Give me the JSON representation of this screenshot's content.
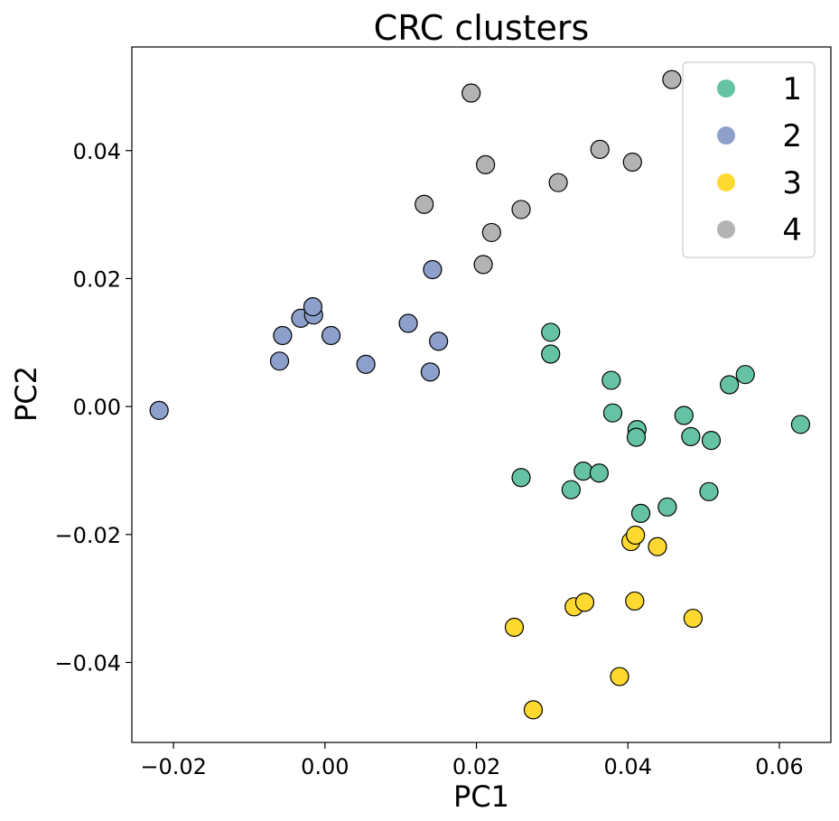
{
  "chart_data": {
    "type": "scatter",
    "title": "CRC clusters",
    "xlabel": "PC1",
    "ylabel": "PC2",
    "xlim": [
      -0.0255,
      0.0668
    ],
    "ylim": [
      -0.0525,
      0.0562
    ],
    "xticks": [
      -0.02,
      0.0,
      0.02,
      0.04,
      0.06
    ],
    "xtick_labels": [
      "−0.02",
      "0.00",
      "0.02",
      "0.04",
      "0.06"
    ],
    "yticks": [
      -0.04,
      -0.02,
      0.0,
      0.02,
      0.04
    ],
    "ytick_labels": [
      "−0.04",
      "−0.02",
      "0.00",
      "0.02",
      "0.04"
    ],
    "grid": false,
    "legend_position": "top-right",
    "series": [
      {
        "name": "1",
        "color": "#66c2a5",
        "points": [
          [
            0.0298,
            0.0116
          ],
          [
            0.0298,
            0.0082
          ],
          [
            0.0378,
            0.0041
          ],
          [
            0.038,
            -0.001
          ],
          [
            0.0412,
            -0.0036
          ],
          [
            0.0411,
            -0.0048
          ],
          [
            0.0474,
            -0.0014
          ],
          [
            0.0483,
            -0.0047
          ],
          [
            0.051,
            -0.0053
          ],
          [
            0.0534,
            0.0034
          ],
          [
            0.0555,
            0.005
          ],
          [
            0.0628,
            -0.0028
          ],
          [
            0.0259,
            -0.0111
          ],
          [
            0.0341,
            -0.0101
          ],
          [
            0.0362,
            -0.0104
          ],
          [
            0.0325,
            -0.013
          ],
          [
            0.0417,
            -0.0167
          ],
          [
            0.0452,
            -0.0157
          ],
          [
            0.0507,
            -0.0133
          ]
        ]
      },
      {
        "name": "2",
        "color": "#8da0cb",
        "points": [
          [
            -0.0219,
            -0.0006
          ],
          [
            -0.006,
            0.0071
          ],
          [
            -0.0056,
            0.0111
          ],
          [
            -0.0032,
            0.0138
          ],
          [
            -0.0015,
            0.0143
          ],
          [
            -0.0016,
            0.0156
          ],
          [
            0.0008,
            0.0111
          ],
          [
            0.0054,
            0.0066
          ],
          [
            0.011,
            0.013
          ],
          [
            0.0139,
            0.0054
          ],
          [
            0.015,
            0.0102
          ],
          [
            0.0142,
            0.0214
          ]
        ]
      },
      {
        "name": "3",
        "color": "#ffd92f",
        "points": [
          [
            0.0404,
            -0.0211
          ],
          [
            0.041,
            -0.0201
          ],
          [
            0.0439,
            -0.0219
          ],
          [
            0.0329,
            -0.0313
          ],
          [
            0.0343,
            -0.0306
          ],
          [
            0.0409,
            -0.0304
          ],
          [
            0.0486,
            -0.0331
          ],
          [
            0.025,
            -0.0345
          ],
          [
            0.0389,
            -0.0422
          ],
          [
            0.0275,
            -0.0474
          ]
        ]
      },
      {
        "name": "4",
        "color": "#b3b3b3",
        "points": [
          [
            0.0193,
            0.049
          ],
          [
            0.0458,
            0.0511
          ],
          [
            0.0212,
            0.0378
          ],
          [
            0.0363,
            0.0402
          ],
          [
            0.0406,
            0.0382
          ],
          [
            0.0308,
            0.035
          ],
          [
            0.0131,
            0.0316
          ],
          [
            0.0259,
            0.0308
          ],
          [
            0.022,
            0.0272
          ],
          [
            0.0209,
            0.0222
          ]
        ]
      }
    ]
  }
}
